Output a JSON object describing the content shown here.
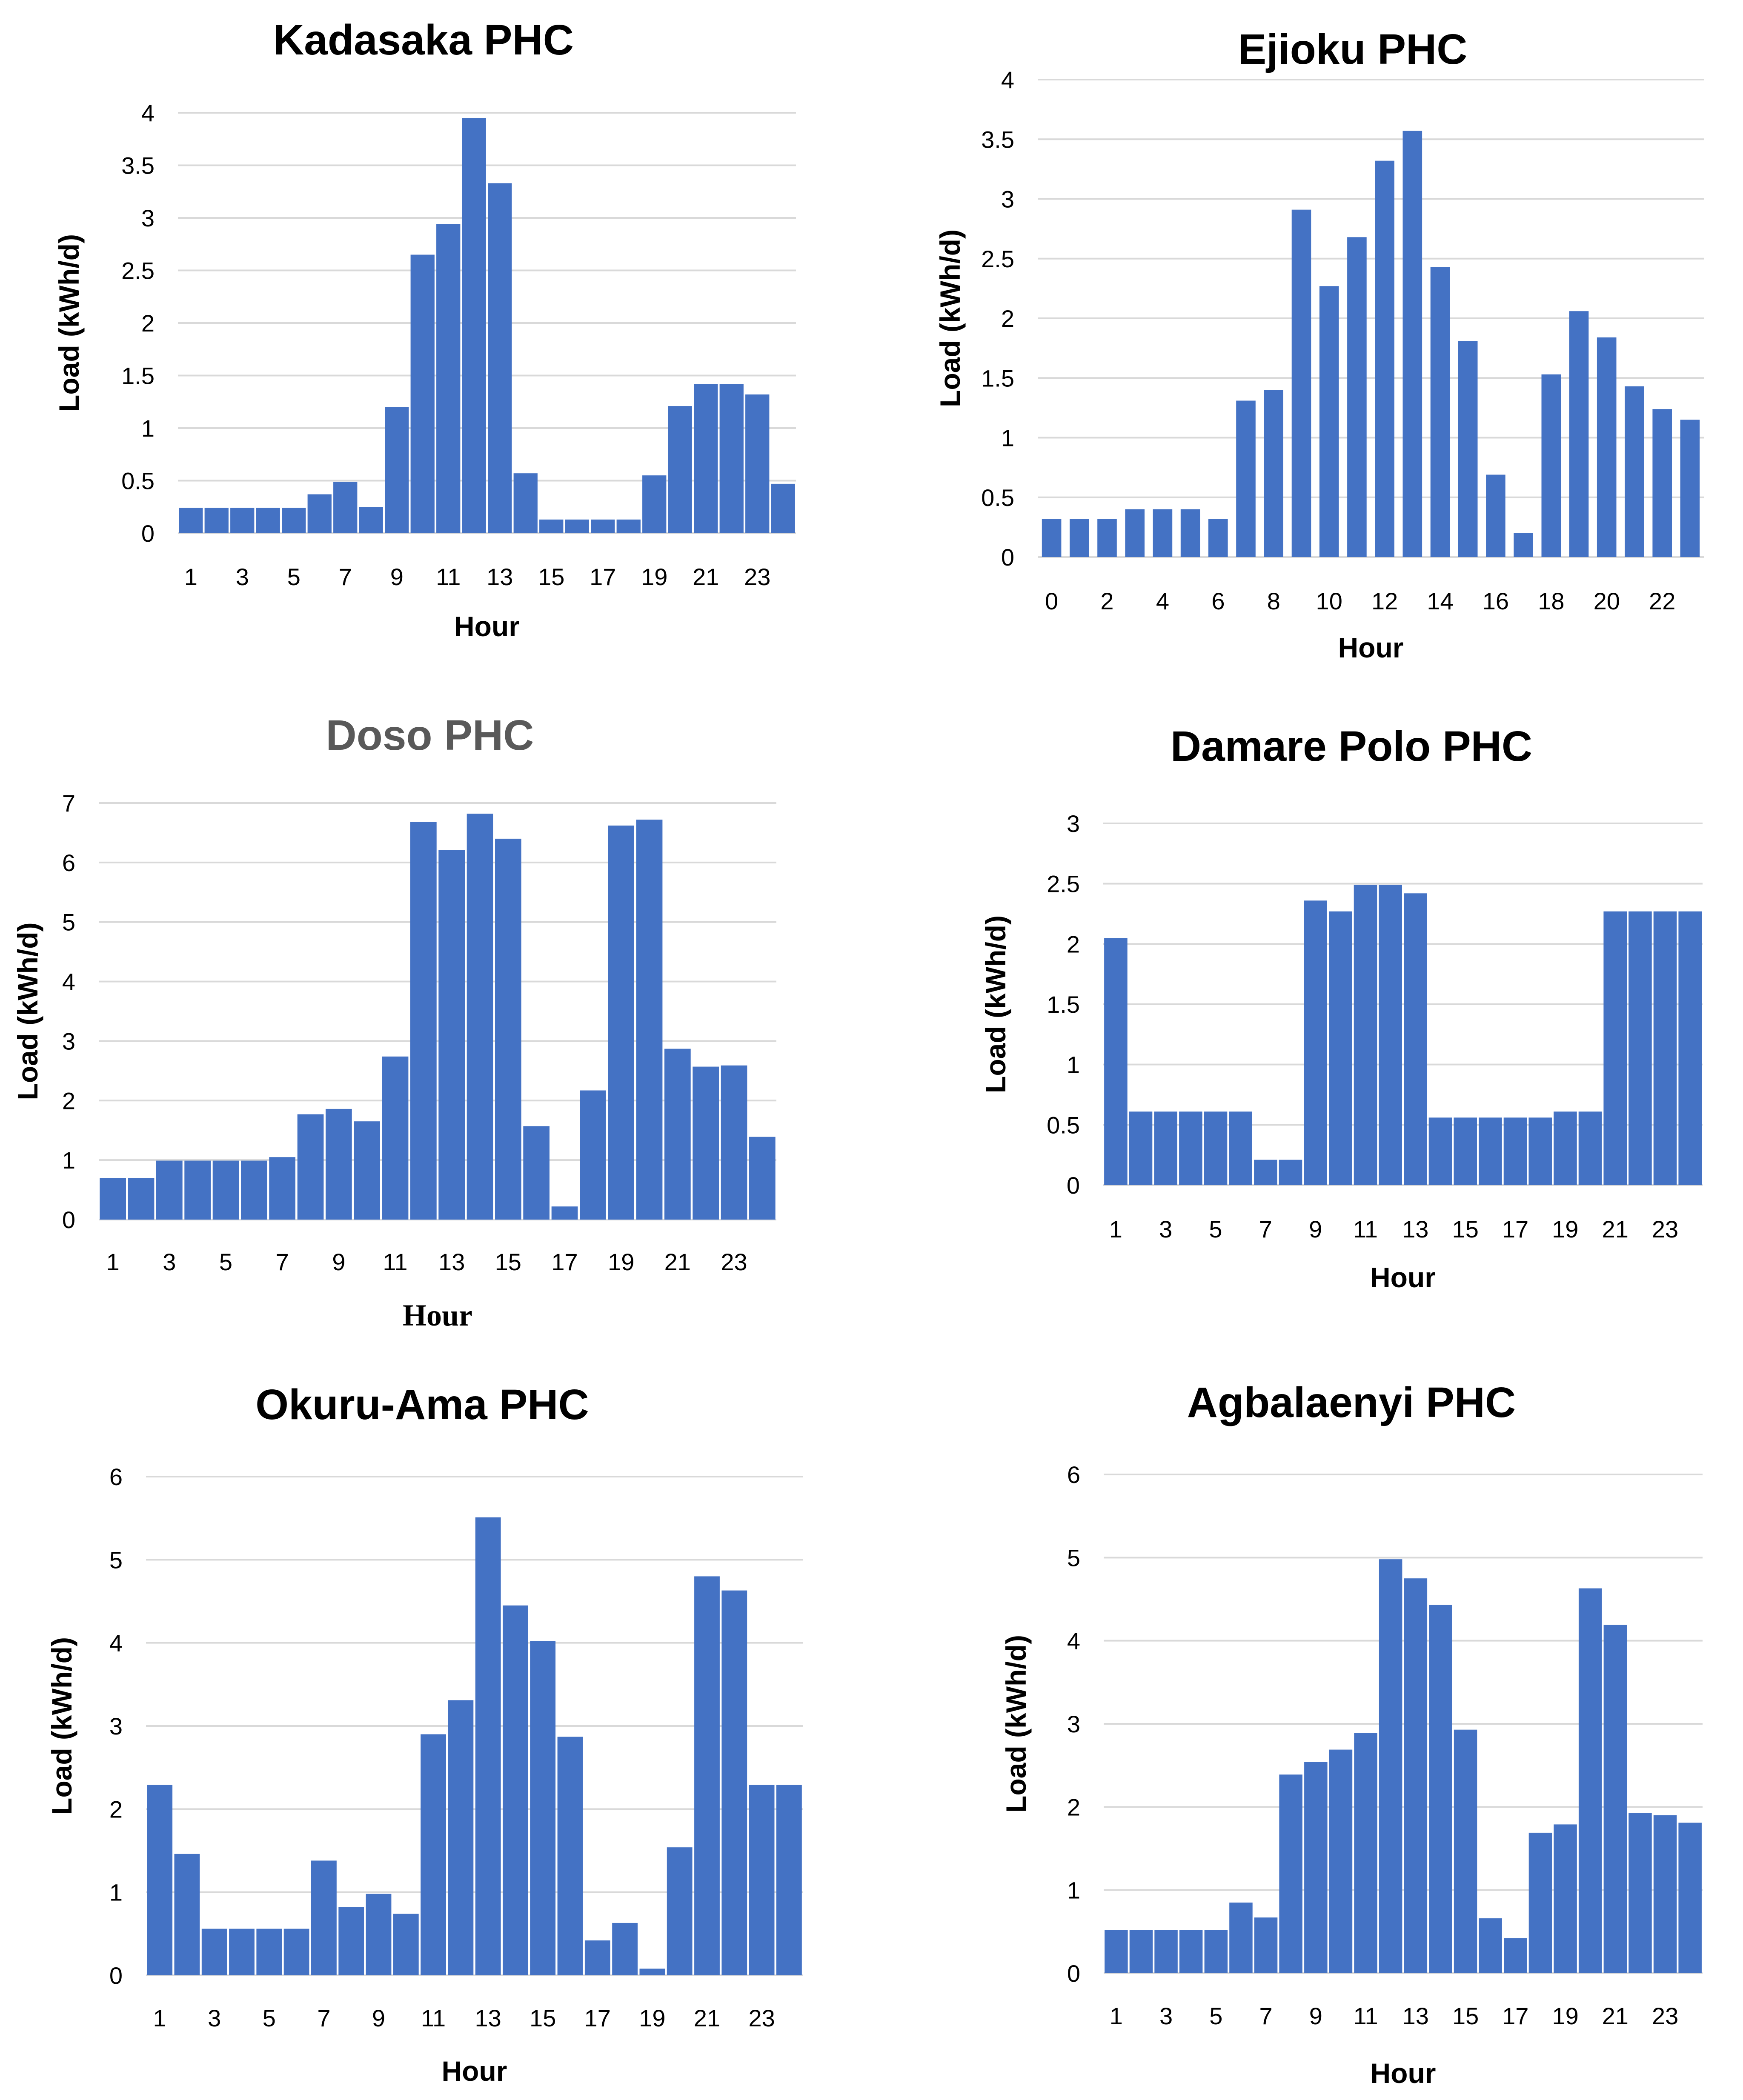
{
  "bar_color": "#4472c4",
  "grid_color": "#d9d9d9",
  "chart_data": [
    {
      "type": "bar",
      "title": "Kadasaka PHC",
      "xlabel": "Hour",
      "ylabel": "Load (kWh/d)",
      "ylim": [
        0,
        4
      ],
      "yticks": [
        "0",
        "0.5",
        "1",
        "1.5",
        "2",
        "2.5",
        "3",
        "3.5",
        "4"
      ],
      "categories": [
        "1",
        "2",
        "3",
        "4",
        "5",
        "6",
        "7",
        "8",
        "9",
        "10",
        "11",
        "12",
        "13",
        "14",
        "15",
        "16",
        "17",
        "18",
        "19",
        "20",
        "21",
        "22",
        "23",
        "24"
      ],
      "xtick_labels": [
        "1",
        "3",
        "5",
        "7",
        "9",
        "11",
        "13",
        "15",
        "17",
        "19",
        "21",
        "23"
      ],
      "values": [
        0.24,
        0.24,
        0.24,
        0.24,
        0.24,
        0.37,
        0.49,
        0.25,
        1.2,
        2.65,
        2.94,
        3.95,
        3.33,
        0.57,
        0.13,
        0.13,
        0.13,
        0.13,
        0.55,
        1.21,
        1.42,
        1.42,
        1.32,
        0.47
      ]
    },
    {
      "type": "bar",
      "title": "Ejioku PHC",
      "xlabel": "Hour",
      "ylabel": "Load (kWh/d)",
      "ylim": [
        0,
        4
      ],
      "yticks": [
        "0",
        "0.5",
        "1",
        "1.5",
        "2",
        "2.5",
        "3",
        "3.5",
        "4"
      ],
      "categories": [
        "0",
        "1",
        "2",
        "3",
        "4",
        "5",
        "6",
        "7",
        "8",
        "9",
        "10",
        "11",
        "12",
        "13",
        "14",
        "15",
        "16",
        "17",
        "18",
        "19",
        "20",
        "21",
        "22",
        "23"
      ],
      "xtick_labels": [
        "0",
        "2",
        "4",
        "6",
        "8",
        "10",
        "12",
        "14",
        "16",
        "18",
        "20",
        "22"
      ],
      "values": [
        0.32,
        0.32,
        0.32,
        0.4,
        0.4,
        0.4,
        0.32,
        1.31,
        1.4,
        2.91,
        2.27,
        2.68,
        3.32,
        3.57,
        2.43,
        1.81,
        0.69,
        0.2,
        1.53,
        2.06,
        1.84,
        1.43,
        1.24,
        1.15
      ]
    },
    {
      "type": "bar",
      "title": "Doso PHC",
      "xlabel": "Hour",
      "ylabel": "Load (kWh/d)",
      "ylim": [
        0,
        7
      ],
      "yticks": [
        "0",
        "1",
        "2",
        "3",
        "4",
        "5",
        "6",
        "7"
      ],
      "categories": [
        "1",
        "2",
        "3",
        "4",
        "5",
        "6",
        "7",
        "8",
        "9",
        "10",
        "11",
        "12",
        "13",
        "14",
        "15",
        "16",
        "17",
        "18",
        "19",
        "20",
        "21",
        "22",
        "23",
        "24"
      ],
      "xtick_labels": [
        "1",
        "3",
        "5",
        "7",
        "9",
        "11",
        "13",
        "15",
        "17",
        "19",
        "21",
        "23"
      ],
      "values": [
        0.7,
        0.7,
        0.99,
        0.99,
        0.99,
        0.99,
        1.05,
        1.77,
        1.86,
        1.65,
        2.74,
        6.68,
        6.21,
        6.82,
        6.4,
        1.57,
        0.22,
        2.17,
        6.62,
        6.72,
        2.87,
        2.57,
        2.59,
        1.39
      ]
    },
    {
      "type": "bar",
      "title": "Damare Polo PHC",
      "xlabel": "Hour",
      "ylabel": "Load (kWh/d)",
      "ylim": [
        0,
        3
      ],
      "yticks": [
        "0",
        "0.5",
        "1",
        "1.5",
        "2",
        "2.5",
        "3"
      ],
      "categories": [
        "1",
        "2",
        "3",
        "4",
        "5",
        "6",
        "7",
        "8",
        "9",
        "10",
        "11",
        "12",
        "13",
        "14",
        "15",
        "16",
        "17",
        "18",
        "19",
        "20",
        "21",
        "22",
        "23",
        "24"
      ],
      "xtick_labels": [
        "1",
        "3",
        "5",
        "7",
        "9",
        "11",
        "13",
        "15",
        "17",
        "19",
        "21",
        "23"
      ],
      "values": [
        2.05,
        0.61,
        0.61,
        0.61,
        0.61,
        0.61,
        0.21,
        0.21,
        2.36,
        2.27,
        2.49,
        2.49,
        2.42,
        0.56,
        0.56,
        0.56,
        0.56,
        0.56,
        0.61,
        0.61,
        2.27,
        2.27,
        2.27,
        2.27
      ]
    },
    {
      "type": "bar",
      "title": "Okuru-Ama PHC",
      "xlabel": "Hour",
      "ylabel": "Load (kWh/d)",
      "ylim": [
        0,
        6
      ],
      "yticks": [
        "0",
        "1",
        "2",
        "3",
        "4",
        "5",
        "6"
      ],
      "categories": [
        "1",
        "2",
        "3",
        "4",
        "5",
        "6",
        "7",
        "8",
        "9",
        "10",
        "11",
        "12",
        "13",
        "14",
        "15",
        "16",
        "17",
        "18",
        "19",
        "20",
        "21",
        "22",
        "23",
        "24"
      ],
      "xtick_labels": [
        "1",
        "3",
        "5",
        "7",
        "9",
        "11",
        "13",
        "15",
        "17",
        "19",
        "21",
        "23"
      ],
      "values": [
        2.29,
        1.46,
        0.56,
        0.56,
        0.56,
        0.56,
        1.38,
        0.82,
        0.98,
        0.74,
        2.9,
        3.31,
        5.51,
        4.45,
        4.02,
        2.87,
        0.42,
        0.63,
        0.08,
        1.54,
        4.8,
        4.63,
        2.29,
        2.29
      ]
    },
    {
      "type": "bar",
      "title": "Agbalaenyi PHC",
      "xlabel": "Hour",
      "ylabel": "Load (kWh/d)",
      "ylim": [
        0,
        6
      ],
      "yticks": [
        "0",
        "1",
        "2",
        "3",
        "4",
        "5",
        "6"
      ],
      "categories": [
        "1",
        "2",
        "3",
        "4",
        "5",
        "6",
        "7",
        "8",
        "9",
        "10",
        "11",
        "12",
        "13",
        "14",
        "15",
        "16",
        "17",
        "18",
        "19",
        "20",
        "21",
        "22",
        "23",
        "24"
      ],
      "xtick_labels": [
        "1",
        "3",
        "5",
        "7",
        "9",
        "11",
        "13",
        "15",
        "17",
        "19",
        "21",
        "23"
      ],
      "values": [
        0.52,
        0.52,
        0.52,
        0.52,
        0.52,
        0.85,
        0.67,
        2.39,
        2.54,
        2.69,
        2.89,
        4.98,
        4.75,
        4.43,
        2.93,
        0.66,
        0.42,
        1.69,
        1.79,
        4.63,
        4.19,
        1.93,
        1.9,
        1.81
      ]
    }
  ]
}
